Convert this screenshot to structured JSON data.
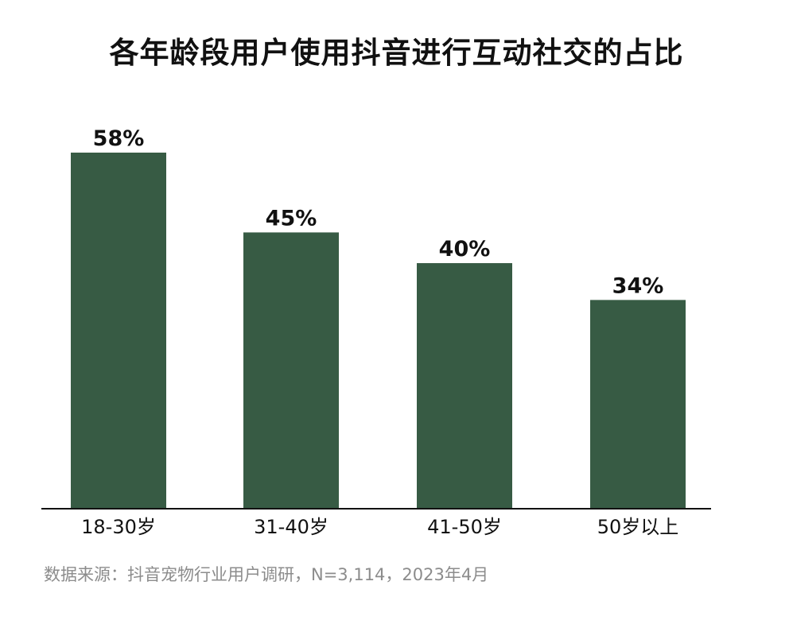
{
  "chart_data": {
    "type": "bar",
    "title": "各年龄段用户使用抖音进行互动社交的占比",
    "categories": [
      "18-30岁",
      "31-40岁",
      "41-50岁",
      "50岁以上"
    ],
    "values": [
      58,
      45,
      40,
      34
    ],
    "value_labels": [
      "58%",
      "45%",
      "40%",
      "34%"
    ],
    "unit": "%",
    "xlabel": "",
    "ylabel": "",
    "ylim": [
      0,
      58
    ],
    "grid": false,
    "bar_color": "#375b44",
    "source": "数据来源：抖音宠物行业用户调研，N=3,114，2023年4月"
  }
}
